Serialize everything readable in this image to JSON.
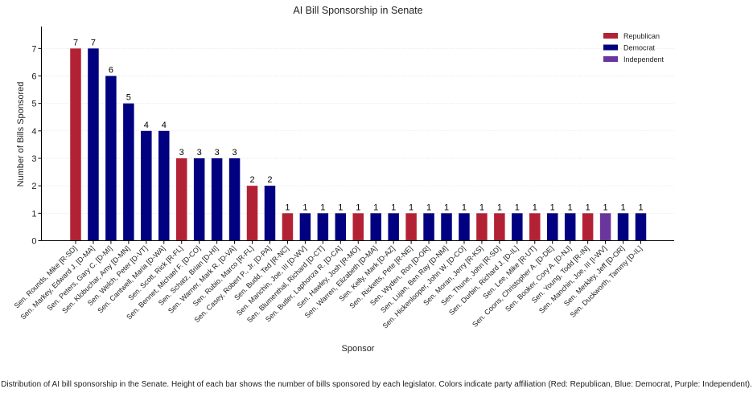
{
  "caption": "Distribution of AI bill sponsorship in the Senate. Height of each bar shows the number of bills sponsored by each legislator. Colors indicate party affiliation (Red: Republican, Blue: Democrat, Purple: Independent).",
  "chart_data": {
    "type": "bar",
    "title": "AI Bill Sponsorship in Senate",
    "xlabel": "Sponsor",
    "ylabel": "Number of Bills Sponsored",
    "ylim": [
      0,
      7.8
    ],
    "yticks": [
      0,
      1,
      2,
      3,
      4,
      5,
      6,
      7
    ],
    "grid": "horizontal-dotted",
    "legend_position": "top-right",
    "colors": {
      "Republican": "#b22234",
      "Democrat": "#000080",
      "Independent": "#6a359c"
    },
    "legend": [
      {
        "label": "Republican",
        "party": "R"
      },
      {
        "label": "Democrat",
        "party": "D"
      },
      {
        "label": "Independent",
        "party": "I"
      }
    ],
    "categories": [
      "Sen. Rounds, Mike [R-SD]",
      "Sen. Markey, Edward J. [D-MA]",
      "Sen. Peters, Gary C. [D-MI]",
      "Sen. Klobuchar, Amy [D-MN]",
      "Sen. Welch, Peter [D-VT]",
      "Sen. Cantwell, Maria [D-WA]",
      "Sen. Scott, Rick [R-FL]",
      "Sen. Bennet, Michael F. [D-CO]",
      "Sen. Schatz, Brian [D-HI]",
      "Sen. Warner, Mark R. [D-VA]",
      "Sen. Rubio, Marco [R-FL]",
      "Sen. Casey, Robert P., Jr. [D-PA]",
      "Sen. Budd, Ted [R-NC]",
      "Sen. Manchin, Joe, III [D-WV]",
      "Sen. Blumenthal, Richard [D-CT]",
      "Sen. Butler, Laphonza R. [D-CA]",
      "Sen. Hawley, Josh [R-MO]",
      "Sen. Warren, Elizabeth [D-MA]",
      "Sen. Kelly, Mark [D-AZ]",
      "Sen. Ricketts, Pete [R-NE]",
      "Sen. Wyden, Ron [D-OR]",
      "Sen. Lujan, Ben Ray [D-NM]",
      "Sen. Hickenlooper, John W. [D-CO]",
      "Sen. Moran, Jerry [R-KS]",
      "Sen. Thune, John [R-SD]",
      "Sen. Durbin, Richard J. [D-IL]",
      "Sen. Lee, Mike [R-UT]",
      "Sen. Coons, Christopher A. [D-DE]",
      "Sen. Booker, Cory A. [D-NJ]",
      "Sen. Young, Todd [R-IN]",
      "Sen. Manchin, Joe, III [I-WV]",
      "Sen. Merkley, Jeff [D-OR]",
      "Sen. Duckworth, Tammy [D-IL]"
    ],
    "values": [
      7,
      7,
      6,
      5,
      4,
      4,
      3,
      3,
      3,
      3,
      2,
      2,
      1,
      1,
      1,
      1,
      1,
      1,
      1,
      1,
      1,
      1,
      1,
      1,
      1,
      1,
      1,
      1,
      1,
      1,
      1,
      1,
      1
    ],
    "party": [
      "R",
      "D",
      "D",
      "D",
      "D",
      "D",
      "R",
      "D",
      "D",
      "D",
      "R",
      "D",
      "R",
      "D",
      "D",
      "D",
      "R",
      "D",
      "D",
      "R",
      "D",
      "D",
      "D",
      "R",
      "R",
      "D",
      "R",
      "D",
      "D",
      "R",
      "I",
      "D",
      "D"
    ]
  }
}
